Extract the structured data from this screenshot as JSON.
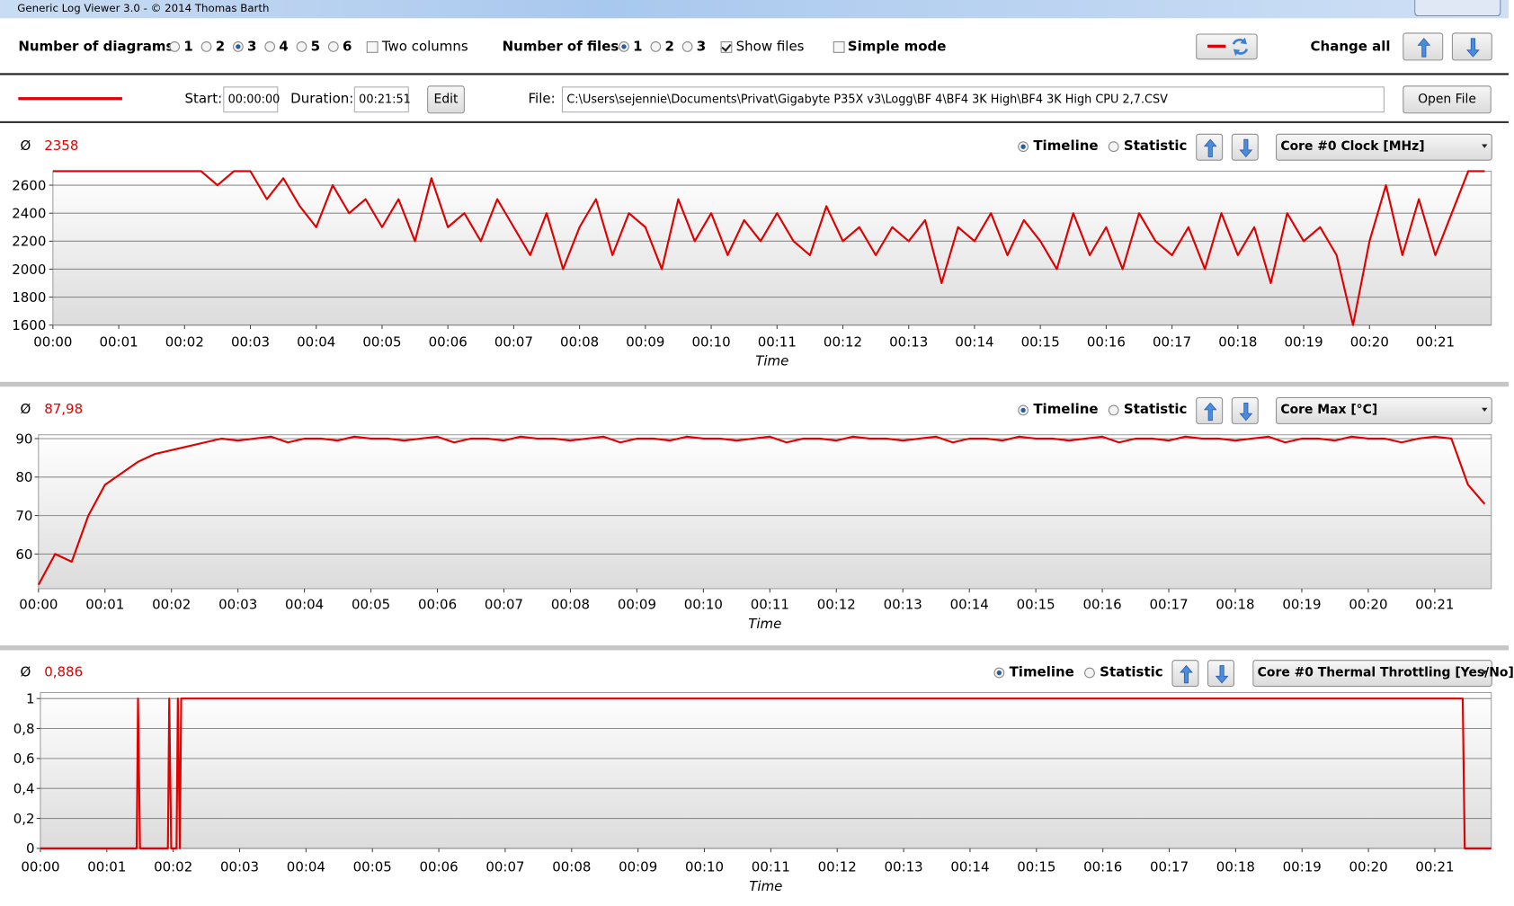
{
  "window": {
    "title": "Generic Log Viewer 3.0 - © 2014 Thomas Barth"
  },
  "toolbar": {
    "diagrams_label": "Number of diagrams",
    "diagram_options": [
      "1",
      "2",
      "3",
      "4",
      "5",
      "6"
    ],
    "diagrams_selected": 2,
    "two_columns": "Two columns",
    "files_label": "Number of files",
    "file_options": [
      "1",
      "2",
      "3"
    ],
    "files_selected": 0,
    "show_files": "Show files",
    "show_files_checked": true,
    "simple_mode": "Simple mode",
    "change_all": "Change all"
  },
  "file_row": {
    "start_label": "Start:",
    "start": "00:00:00",
    "duration_label": "Duration:",
    "duration": "00:21:51",
    "edit": "Edit",
    "file_label": "File:",
    "file_path": "C:\\Users\\sejennie\\Documents\\Privat\\Gigabyte P35X v3\\Logg\\BF 4\\BF4 3K High\\BF4 3K High CPU 2,7.CSV",
    "open_file": "Open File"
  },
  "panels": [
    {
      "avg_symbol": "Ø",
      "average": "2358",
      "timeline": "Timeline",
      "statistic": "Statistic",
      "channel": "Core #0 Clock [MHz]"
    },
    {
      "avg_symbol": "Ø",
      "average": "87,98",
      "timeline": "Timeline",
      "statistic": "Statistic",
      "channel": "Core Max [°C]"
    },
    {
      "avg_symbol": "Ø",
      "average": "0,886",
      "timeline": "Timeline",
      "statistic": "Statistic",
      "channel": "Core #0 Thermal Throttling [Yes/No]"
    }
  ],
  "chart_data": [
    {
      "type": "line",
      "x_label": "Time",
      "color": "#e00000",
      "grid": true,
      "xlim": [
        0,
        21.85
      ],
      "ylim": [
        1600,
        2700
      ],
      "yticks": [
        1600,
        1800,
        2000,
        2200,
        2400,
        2600
      ],
      "xticks": [
        {
          "value": 0,
          "label": "00:00"
        },
        {
          "value": 1,
          "label": "00:01"
        },
        {
          "value": 2,
          "label": "00:02"
        },
        {
          "value": 3,
          "label": "00:03"
        },
        {
          "value": 4,
          "label": "00:04"
        },
        {
          "value": 5,
          "label": "00:05"
        },
        {
          "value": 6,
          "label": "00:06"
        },
        {
          "value": 7,
          "label": "00:07"
        },
        {
          "value": 8,
          "label": "00:08"
        },
        {
          "value": 9,
          "label": "00:09"
        },
        {
          "value": 10,
          "label": "00:10"
        },
        {
          "value": 11,
          "label": "00:11"
        },
        {
          "value": 12,
          "label": "00:12"
        },
        {
          "value": 13,
          "label": "00:13"
        },
        {
          "value": 14,
          "label": "00:14"
        },
        {
          "value": 15,
          "label": "00:15"
        },
        {
          "value": 16,
          "label": "00:16"
        },
        {
          "value": 17,
          "label": "00:17"
        },
        {
          "value": 18,
          "label": "00:18"
        },
        {
          "value": 19,
          "label": "00:19"
        },
        {
          "value": 20,
          "label": "00:20"
        },
        {
          "value": 21,
          "label": "00:21"
        }
      ],
      "x": [
        0,
        0.25,
        0.5,
        0.75,
        1,
        1.25,
        1.5,
        1.75,
        2,
        2.25,
        2.5,
        2.75,
        3,
        3.25,
        3.5,
        3.75,
        4,
        4.25,
        4.5,
        4.75,
        5,
        5.25,
        5.5,
        5.75,
        6,
        6.25,
        6.5,
        6.75,
        7,
        7.25,
        7.5,
        7.75,
        8,
        8.25,
        8.5,
        8.75,
        9,
        9.25,
        9.5,
        9.75,
        10,
        10.25,
        10.5,
        10.75,
        11,
        11.25,
        11.5,
        11.75,
        12,
        12.25,
        12.5,
        12.75,
        13,
        13.25,
        13.5,
        13.75,
        14,
        14.25,
        14.5,
        14.75,
        15,
        15.25,
        15.5,
        15.75,
        16,
        16.25,
        16.5,
        16.75,
        17,
        17.25,
        17.5,
        17.75,
        18,
        18.25,
        18.5,
        18.75,
        19,
        19.25,
        19.5,
        19.75,
        20,
        20.25,
        20.5,
        20.75,
        21,
        21.25,
        21.5,
        21.75
      ],
      "values": [
        2700,
        2700,
        2700,
        2700,
        2700,
        2700,
        2700,
        2700,
        2700,
        2700,
        2600,
        2700,
        2700,
        2500,
        2650,
        2450,
        2300,
        2600,
        2400,
        2500,
        2300,
        2500,
        2200,
        2650,
        2300,
        2400,
        2200,
        2500,
        2300,
        2100,
        2400,
        2000,
        2300,
        2500,
        2100,
        2400,
        2300,
        2000,
        2500,
        2200,
        2400,
        2100,
        2350,
        2200,
        2400,
        2200,
        2100,
        2450,
        2200,
        2300,
        2100,
        2300,
        2200,
        2350,
        1900,
        2300,
        2200,
        2400,
        2100,
        2350,
        2200,
        2000,
        2400,
        2100,
        2300,
        2000,
        2400,
        2200,
        2100,
        2300,
        2000,
        2400,
        2100,
        2300,
        1900,
        2400,
        2200,
        2300,
        2100,
        1600,
        2200,
        2600,
        2100,
        2500,
        2100,
        2400,
        2700,
        2700
      ]
    },
    {
      "type": "line",
      "x_label": "Time",
      "color": "#e00000",
      "grid": true,
      "xlim": [
        0,
        21.85
      ],
      "ylim": [
        51,
        91
      ],
      "yticks": [
        60,
        70,
        80,
        90
      ],
      "xticks": [
        {
          "value": 0,
          "label": "00:00"
        },
        {
          "value": 1,
          "label": "00:01"
        },
        {
          "value": 2,
          "label": "00:02"
        },
        {
          "value": 3,
          "label": "00:03"
        },
        {
          "value": 4,
          "label": "00:04"
        },
        {
          "value": 5,
          "label": "00:05"
        },
        {
          "value": 6,
          "label": "00:06"
        },
        {
          "value": 7,
          "label": "00:07"
        },
        {
          "value": 8,
          "label": "00:08"
        },
        {
          "value": 9,
          "label": "00:09"
        },
        {
          "value": 10,
          "label": "00:10"
        },
        {
          "value": 11,
          "label": "00:11"
        },
        {
          "value": 12,
          "label": "00:12"
        },
        {
          "value": 13,
          "label": "00:13"
        },
        {
          "value": 14,
          "label": "00:14"
        },
        {
          "value": 15,
          "label": "00:15"
        },
        {
          "value": 16,
          "label": "00:16"
        },
        {
          "value": 17,
          "label": "00:17"
        },
        {
          "value": 18,
          "label": "00:18"
        },
        {
          "value": 19,
          "label": "00:19"
        },
        {
          "value": 20,
          "label": "00:20"
        },
        {
          "value": 21,
          "label": "00:21"
        }
      ],
      "x": [
        0,
        0.25,
        0.5,
        0.75,
        1,
        1.25,
        1.5,
        1.75,
        2,
        2.25,
        2.5,
        2.75,
        3,
        3.25,
        3.5,
        3.75,
        4,
        4.25,
        4.5,
        4.75,
        5,
        5.25,
        5.5,
        5.75,
        6,
        6.25,
        6.5,
        6.75,
        7,
        7.25,
        7.5,
        7.75,
        8,
        8.25,
        8.5,
        8.75,
        9,
        9.25,
        9.5,
        9.75,
        10,
        10.25,
        10.5,
        10.75,
        11,
        11.25,
        11.5,
        11.75,
        12,
        12.25,
        12.5,
        12.75,
        13,
        13.25,
        13.5,
        13.75,
        14,
        14.25,
        14.5,
        14.75,
        15,
        15.25,
        15.5,
        15.75,
        16,
        16.25,
        16.5,
        16.75,
        17,
        17.25,
        17.5,
        17.75,
        18,
        18.25,
        18.5,
        18.75,
        19,
        19.25,
        19.5,
        19.75,
        20,
        20.25,
        20.5,
        20.75,
        21,
        21.25,
        21.5,
        21.75
      ],
      "values": [
        52,
        60,
        58,
        70,
        78,
        81,
        84,
        86,
        87,
        88,
        89,
        90,
        89.5,
        90,
        90.5,
        89,
        90,
        90,
        89.5,
        90.5,
        90,
        90,
        89.5,
        90,
        90.5,
        89,
        90,
        90,
        89.5,
        90.5,
        90,
        90,
        89.5,
        90,
        90.5,
        89,
        90,
        90,
        89.5,
        90.5,
        90,
        90,
        89.5,
        90,
        90.5,
        89,
        90,
        90,
        89.5,
        90.5,
        90,
        90,
        89.5,
        90,
        90.5,
        89,
        90,
        90,
        89.5,
        90.5,
        90,
        90,
        89.5,
        90,
        90.5,
        89,
        90,
        90,
        89.5,
        90.5,
        90,
        90,
        89.5,
        90,
        90.5,
        89,
        90,
        90,
        89.5,
        90.5,
        90,
        90,
        89,
        90,
        90.5,
        90,
        78,
        73
      ]
    },
    {
      "type": "line",
      "x_label": "Time",
      "color": "#e00000",
      "grid": true,
      "xlim": [
        0,
        21.85
      ],
      "ylim": [
        0,
        1.04
      ],
      "yticks": [
        0,
        {
          "value": 0.2,
          "label": "0,2"
        },
        {
          "value": 0.4,
          "label": "0,4"
        },
        {
          "value": 0.6,
          "label": "0,6"
        },
        {
          "value": 0.8,
          "label": "0,8"
        },
        1
      ],
      "xticks": [
        {
          "value": 0,
          "label": "00:00"
        },
        {
          "value": 1,
          "label": "00:01"
        },
        {
          "value": 2,
          "label": "00:02"
        },
        {
          "value": 3,
          "label": "00:03"
        },
        {
          "value": 4,
          "label": "00:04"
        },
        {
          "value": 5,
          "label": "00:05"
        },
        {
          "value": 6,
          "label": "00:06"
        },
        {
          "value": 7,
          "label": "00:07"
        },
        {
          "value": 8,
          "label": "00:08"
        },
        {
          "value": 9,
          "label": "00:09"
        },
        {
          "value": 10,
          "label": "00:10"
        },
        {
          "value": 11,
          "label": "00:11"
        },
        {
          "value": 12,
          "label": "00:12"
        },
        {
          "value": 13,
          "label": "00:13"
        },
        {
          "value": 14,
          "label": "00:14"
        },
        {
          "value": 15,
          "label": "00:15"
        },
        {
          "value": 16,
          "label": "00:16"
        },
        {
          "value": 17,
          "label": "00:17"
        },
        {
          "value": 18,
          "label": "00:18"
        },
        {
          "value": 19,
          "label": "00:19"
        },
        {
          "value": 20,
          "label": "00:20"
        },
        {
          "value": 21,
          "label": "00:21"
        }
      ],
      "x": [
        0,
        1.45,
        1.47,
        1.5,
        1.92,
        1.94,
        1.97,
        2.05,
        2.07,
        2.1,
        2.12,
        21.42,
        21.45,
        21.85
      ],
      "values": [
        0,
        0,
        1,
        0,
        0,
        1,
        0,
        0,
        1,
        0,
        1,
        1,
        0,
        0
      ]
    }
  ]
}
